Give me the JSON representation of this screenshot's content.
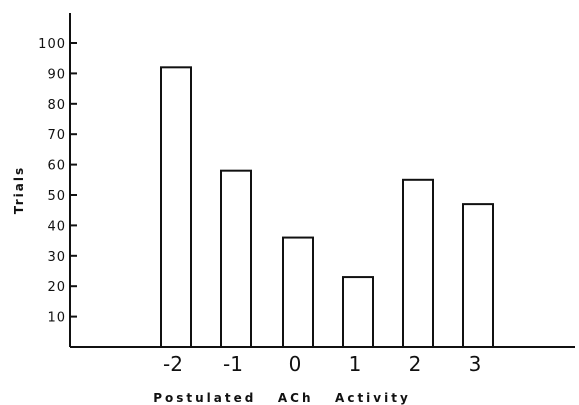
{
  "chart_data": {
    "type": "bar",
    "title": "",
    "xlabel": "Postulated   ACh   Activity",
    "ylabel": "Trials",
    "categories": [
      "-2",
      "-1",
      "0",
      "1",
      "2",
      "3"
    ],
    "values": [
      92,
      58,
      36,
      23,
      55,
      47
    ],
    "yticks": [
      "10",
      "20",
      "30",
      "40",
      "50",
      "60",
      "70",
      "80",
      "90",
      "100"
    ],
    "ylim": [
      0,
      110
    ],
    "grid": false,
    "legend": "none"
  }
}
